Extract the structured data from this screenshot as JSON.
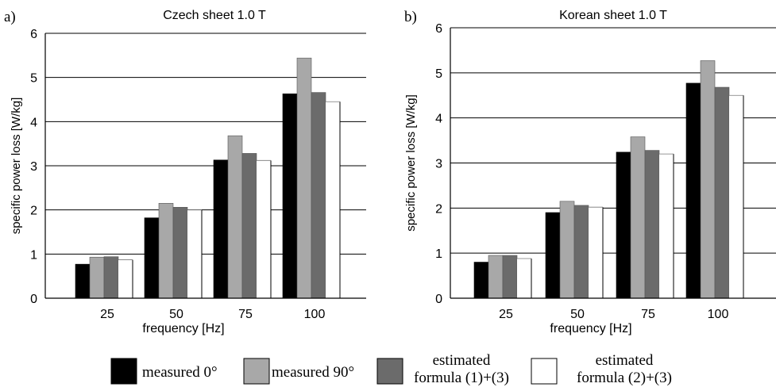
{
  "chart_data": [
    {
      "panel_label": "a)",
      "type": "bar",
      "title": "Czech sheet 1.0 T",
      "xlabel": "frequency [Hz]",
      "ylabel": "specific power loss [W/kg]",
      "ylim": [
        0,
        6
      ],
      "yticks": [
        "0",
        "1",
        "2",
        "3",
        "4",
        "5",
        "6"
      ],
      "grid": true,
      "categories": [
        "25",
        "50",
        "75",
        "100"
      ],
      "series": [
        {
          "name": "measured 0°",
          "values": [
            0.77,
            1.82,
            3.13,
            4.63
          ]
        },
        {
          "name": "measured 90°",
          "values": [
            0.93,
            2.15,
            3.68,
            5.44
          ]
        },
        {
          "name": "estimated formula (1)+(3)",
          "values": [
            0.94,
            2.06,
            3.28,
            4.66
          ]
        },
        {
          "name": "estimated formula (2)+(3)",
          "values": [
            0.87,
            2.0,
            3.12,
            4.45
          ]
        }
      ]
    },
    {
      "panel_label": "b)",
      "type": "bar",
      "title": "Korean sheet 1.0 T",
      "xlabel": "frequency [Hz]",
      "ylabel": "specific power loss [W/kg]",
      "ylim": [
        0,
        6
      ],
      "yticks": [
        "0",
        "1",
        "2",
        "3",
        "4",
        "5",
        "6"
      ],
      "grid": true,
      "categories": [
        "25",
        "50",
        "75",
        "100"
      ],
      "series": [
        {
          "name": "measured 0°",
          "values": [
            0.8,
            1.9,
            3.24,
            4.77
          ]
        },
        {
          "name": "measured 90°",
          "values": [
            0.95,
            2.15,
            3.58,
            5.27
          ]
        },
        {
          "name": "estimated formula (1)+(3)",
          "values": [
            0.95,
            2.06,
            3.28,
            4.68
          ]
        },
        {
          "name": "estimated formula (2)+(3)",
          "values": [
            0.88,
            2.02,
            3.2,
            4.5
          ]
        }
      ]
    }
  ],
  "legend": {
    "placement": "bottom",
    "items": [
      {
        "lines": [
          "measured 0°"
        ],
        "color": "#000000"
      },
      {
        "lines": [
          "measured 90°"
        ],
        "color": "#a8a8a8"
      },
      {
        "lines": [
          "estimated",
          "formula (1)+(3)"
        ],
        "color": "#6b6b6b"
      },
      {
        "lines": [
          "estimated",
          "formula (2)+(3)"
        ],
        "color": "#ffffff"
      }
    ]
  },
  "colors": {
    "measured_0": "#000000",
    "measured_90": "#a8a8a8",
    "estimated_1_3": "#6b6b6b",
    "estimated_2_3": "#ffffff"
  }
}
